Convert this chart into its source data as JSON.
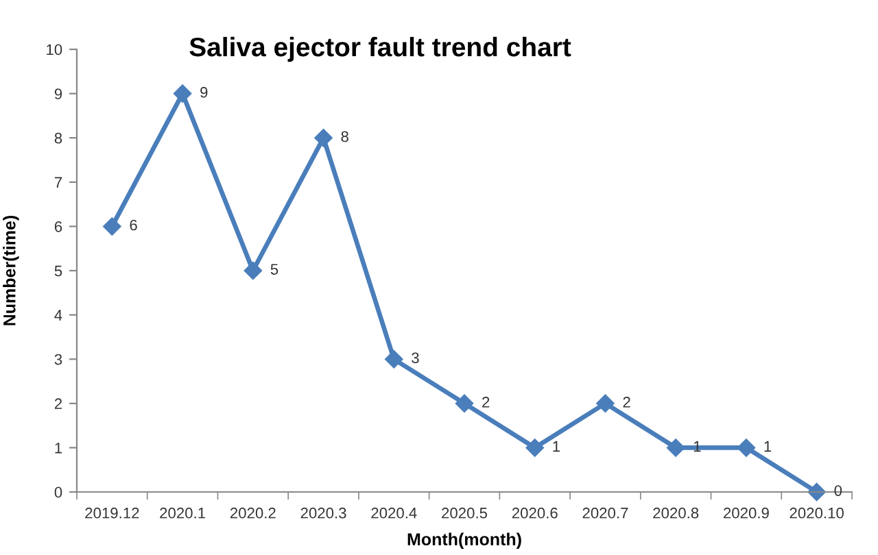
{
  "chart_data": {
    "type": "line",
    "title": "Saliva ejector fault trend chart",
    "xlabel": "Month(month)",
    "ylabel": "Number(time)",
    "categories": [
      "2019.12",
      "2020.1",
      "2020.2",
      "2020.3",
      "2020.4",
      "2020.5",
      "2020.6",
      "2020.7",
      "2020.8",
      "2020.9",
      "2020.10"
    ],
    "series": [
      {
        "color": "#4a7ebb",
        "values": [
          6,
          9,
          5,
          8,
          3,
          2,
          1,
          2,
          1,
          1,
          0
        ]
      }
    ],
    "ylim": [
      0,
      10
    ],
    "yticks": [
      0,
      1,
      2,
      3,
      4,
      5,
      6,
      7,
      8,
      9,
      10
    ],
    "grid": false,
    "legend": false,
    "marker": "diamond",
    "line_style": "solid",
    "data_labels": true
  }
}
